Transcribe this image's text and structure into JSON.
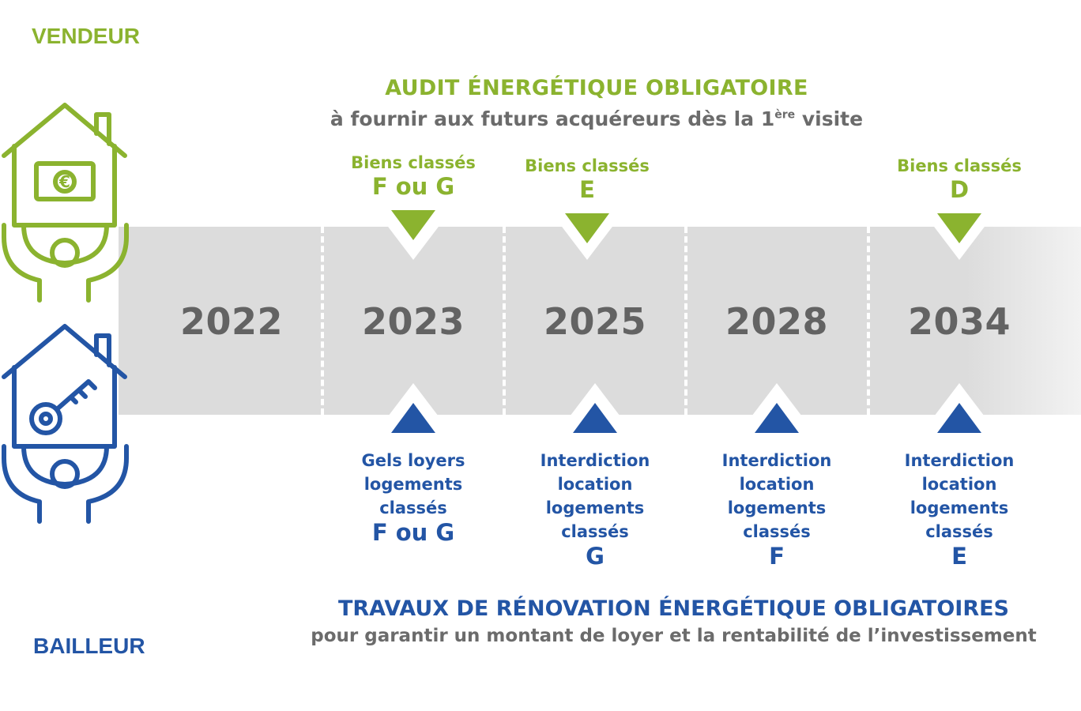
{
  "roles": {
    "seller": "VENDEUR",
    "landlord": "BAILLEUR"
  },
  "top": {
    "title": "AUDIT ÉNERGÉTIQUE OBLIGATOIRE",
    "subtitle_before": "à fournir aux futurs acquéreurs dès la 1",
    "subtitle_sup": "ère",
    "subtitle_after": " visite"
  },
  "timeline": {
    "years": [
      "2022",
      "2023",
      "2025",
      "2028",
      "2034"
    ]
  },
  "seller_events": [
    {
      "year": "2023",
      "line1": "Biens classés",
      "line2": "F ou G"
    },
    {
      "year": "2025",
      "line1": "Biens classés",
      "line2": "E"
    },
    {
      "year": "2034",
      "line1": "Biens classés",
      "line2": "D"
    }
  ],
  "landlord_events": [
    {
      "year": "2023",
      "lines": [
        "Gels loyers",
        "logements",
        "classés"
      ],
      "class": "F ou G"
    },
    {
      "year": "2025",
      "lines": [
        "Interdiction",
        "location",
        "logements",
        "classés"
      ],
      "class": "G"
    },
    {
      "year": "2028",
      "lines": [
        "Interdiction",
        "location",
        "logements",
        "classés"
      ],
      "class": "F"
    },
    {
      "year": "2034",
      "lines": [
        "Interdiction",
        "location",
        "logements",
        "classés"
      ],
      "class": "E"
    }
  ],
  "bottom": {
    "title": "TRAVAUX DE RÉNOVATION ÉNERGÉTIQUE OBLIGATOIRES",
    "subtitle": "pour garantir un montant de loyer et la rentabilité de l’investissement"
  },
  "colors": {
    "seller": "#8bb32f",
    "landlord": "#2355a5",
    "band": "#dcdcdc",
    "year_text": "#636363"
  },
  "icons": {
    "seller": "house-money-person-icon",
    "landlord": "house-key-person-icon"
  }
}
